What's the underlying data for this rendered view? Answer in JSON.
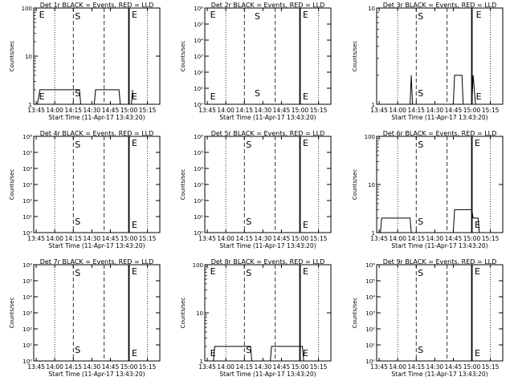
{
  "chart_data": [
    {
      "type": "line",
      "title": "Det 1r BLACK = Events, RED = LLD",
      "xlabel": "Start Time (11-Apr-17 13:43:20)",
      "ylabel": "Counts/sec",
      "x_ticks": [
        "13:45",
        "14:00",
        "14:15",
        "14:30",
        "14:45",
        "15:00",
        "15:15"
      ],
      "y_scale": "log",
      "y_ticks": [
        "1",
        "10",
        "100"
      ],
      "ylim": [
        1,
        100
      ],
      "markers": {
        "E": [
          "13:46",
          "15:01"
        ],
        "S": [
          "14:15"
        ]
      },
      "series": [
        {
          "values": [
            [
              "13:46",
              1
            ],
            [
              "13:48",
              2
            ],
            [
              "14:20",
              2
            ],
            [
              "14:21",
              1
            ],
            [
              "14:32",
              1
            ],
            [
              "14:33",
              2
            ],
            [
              "14:52",
              2
            ],
            [
              "14:53",
              1
            ],
            [
              "15:02",
              1
            ],
            [
              "15:03",
              2
            ]
          ]
        }
      ]
    },
    {
      "type": "line",
      "title": "Det 2r BLACK = Events, RED = LLD",
      "xlabel": "Start Time (11-Apr-17 13:43:20)",
      "ylabel": "Counts/sec",
      "x_ticks": [
        "13:45",
        "14:00",
        "14:15",
        "14:30",
        "14:45",
        "15:00",
        "15:15"
      ],
      "y_scale": "log",
      "y_ticks": [
        "10⁰",
        "10¹",
        "10²",
        "10³",
        "10⁴",
        "10⁵",
        "10⁶"
      ],
      "ylim": [
        1,
        1000000
      ],
      "markers": {
        "E": [
          "13:46",
          "15:01"
        ],
        "S": [
          "14:22"
        ]
      },
      "series": []
    },
    {
      "type": "line",
      "title": "Det 3r BLACK = Events, RED = LLD",
      "xlabel": "Start Time (11-Apr-17 13:43:20)",
      "ylabel": "Counts/sec",
      "x_ticks": [
        "13:45",
        "14:00",
        "14:15",
        "14:30",
        "14:45",
        "15:00",
        "15:15"
      ],
      "y_scale": "log",
      "y_ticks": [
        "1",
        "10"
      ],
      "ylim": [
        1,
        10
      ],
      "markers": {
        "E": [
          "15:02"
        ],
        "S": [
          "14:15"
        ]
      },
      "series": [
        {
          "values": [
            [
              "14:10",
              1
            ],
            [
              "14:11",
              2
            ],
            [
              "14:12",
              1
            ],
            [
              "14:45",
              1
            ],
            [
              "14:46",
              2
            ],
            [
              "14:52",
              2
            ],
            [
              "14:53",
              1
            ],
            [
              "15:00",
              1
            ],
            [
              "15:01",
              2
            ],
            [
              "15:03",
              1
            ]
          ]
        }
      ]
    },
    {
      "type": "line",
      "title": "Det 4r BLACK = Events, RED = LLD",
      "xlabel": "Start Time (11-Apr-17 13:43:20)",
      "ylabel": "Counts/sec",
      "x_ticks": [
        "13:45",
        "14:00",
        "14:15",
        "14:30",
        "14:45",
        "15:00",
        "15:15"
      ],
      "y_scale": "log",
      "y_ticks": [
        "10⁰",
        "10¹",
        "10²",
        "10³",
        "10⁴",
        "10⁵",
        "10⁶"
      ],
      "ylim": [
        1,
        1000000
      ],
      "markers": {
        "E": [
          "15:01"
        ],
        "S": [
          "14:15"
        ]
      },
      "series": []
    },
    {
      "type": "line",
      "title": "Det 5r BLACK = Events, RED = LLD",
      "xlabel": "Start Time (11-Apr-17 13:43:20)",
      "ylabel": "Counts/sec",
      "x_ticks": [
        "13:45",
        "14:00",
        "14:15",
        "14:30",
        "14:45",
        "15:00",
        "15:15"
      ],
      "y_scale": "log",
      "y_ticks": [
        "10⁰",
        "10¹",
        "10²",
        "10³",
        "10⁴",
        "10⁵",
        "10⁶"
      ],
      "ylim": [
        1,
        1000000
      ],
      "markers": {
        "E": [
          "15:01"
        ],
        "S": [
          "14:15"
        ]
      },
      "series": []
    },
    {
      "type": "line",
      "title": "Det 6r BLACK = Events, RED = LLD",
      "xlabel": "Start Time (11-Apr-17 13:43:20)",
      "ylabel": "Counts/sec",
      "x_ticks": [
        "13:45",
        "14:00",
        "14:15",
        "14:30",
        "14:45",
        "15:00",
        "15:15"
      ],
      "y_scale": "log",
      "y_ticks": [
        "1",
        "10",
        "100"
      ],
      "ylim": [
        1,
        100
      ],
      "markers": {
        "E": [
          "15:01"
        ],
        "S": [
          "14:15"
        ]
      },
      "series": [
        {
          "values": [
            [
              "13:46",
              1
            ],
            [
              "13:47",
              2
            ],
            [
              "14:10",
              2
            ],
            [
              "14:11",
              1
            ],
            [
              "14:45",
              1
            ],
            [
              "14:46",
              3
            ],
            [
              "15:00",
              3
            ],
            [
              "15:01",
              2
            ],
            [
              "15:05",
              2
            ],
            [
              "15:06",
              1
            ]
          ]
        }
      ]
    },
    {
      "type": "line",
      "title": "Det 7r BLACK = Events, RED = LLD",
      "xlabel": "Start Time (11-Apr-17 13:43:20)",
      "ylabel": "Counts/sec",
      "x_ticks": [
        "13:45",
        "14:00",
        "14:15",
        "14:30",
        "14:45",
        "15:00",
        "15:15"
      ],
      "y_scale": "log",
      "y_ticks": [
        "10⁰",
        "10¹",
        "10²",
        "10³",
        "10⁴",
        "10⁵",
        "10⁶"
      ],
      "ylim": [
        1,
        1000000
      ],
      "markers": {
        "E": [
          "15:01"
        ],
        "S": [
          "14:15"
        ]
      },
      "series": []
    },
    {
      "type": "line",
      "title": "Det 8r BLACK = Events, RED = LLD",
      "xlabel": "Start Time (11-Apr-17 13:43:20)",
      "ylabel": "Counts/sec",
      "x_ticks": [
        "13:45",
        "14:00",
        "14:15",
        "14:30",
        "14:45",
        "15:00",
        "15:15"
      ],
      "y_scale": "log",
      "y_ticks": [
        "1",
        "10",
        "100"
      ],
      "ylim": [
        1,
        100
      ],
      "markers": {
        "E": [
          "13:46",
          "15:01"
        ],
        "S": [
          "14:15"
        ]
      },
      "series": [
        {
          "values": [
            [
              "13:50",
              1
            ],
            [
              "13:51",
              2
            ],
            [
              "14:20",
              2
            ],
            [
              "14:21",
              1
            ],
            [
              "14:36",
              1
            ],
            [
              "14:37",
              2
            ],
            [
              "15:02",
              2
            ],
            [
              "15:03",
              1
            ]
          ]
        }
      ]
    },
    {
      "type": "line",
      "title": "Det 9r BLACK = Events, RED = LLD",
      "xlabel": "Start Time (11-Apr-17 13:43:20)",
      "ylabel": "Counts/sec",
      "x_ticks": [
        "13:45",
        "14:00",
        "14:15",
        "14:30",
        "14:45",
        "15:00",
        "15:15"
      ],
      "y_scale": "log",
      "y_ticks": [
        "10⁰",
        "10¹",
        "10²",
        "10³",
        "10⁴",
        "10⁵",
        "10⁶"
      ],
      "ylim": [
        1,
        1000000
      ],
      "markers": {
        "E": [
          "15:01"
        ],
        "S": [
          "14:15"
        ]
      },
      "series": []
    }
  ]
}
